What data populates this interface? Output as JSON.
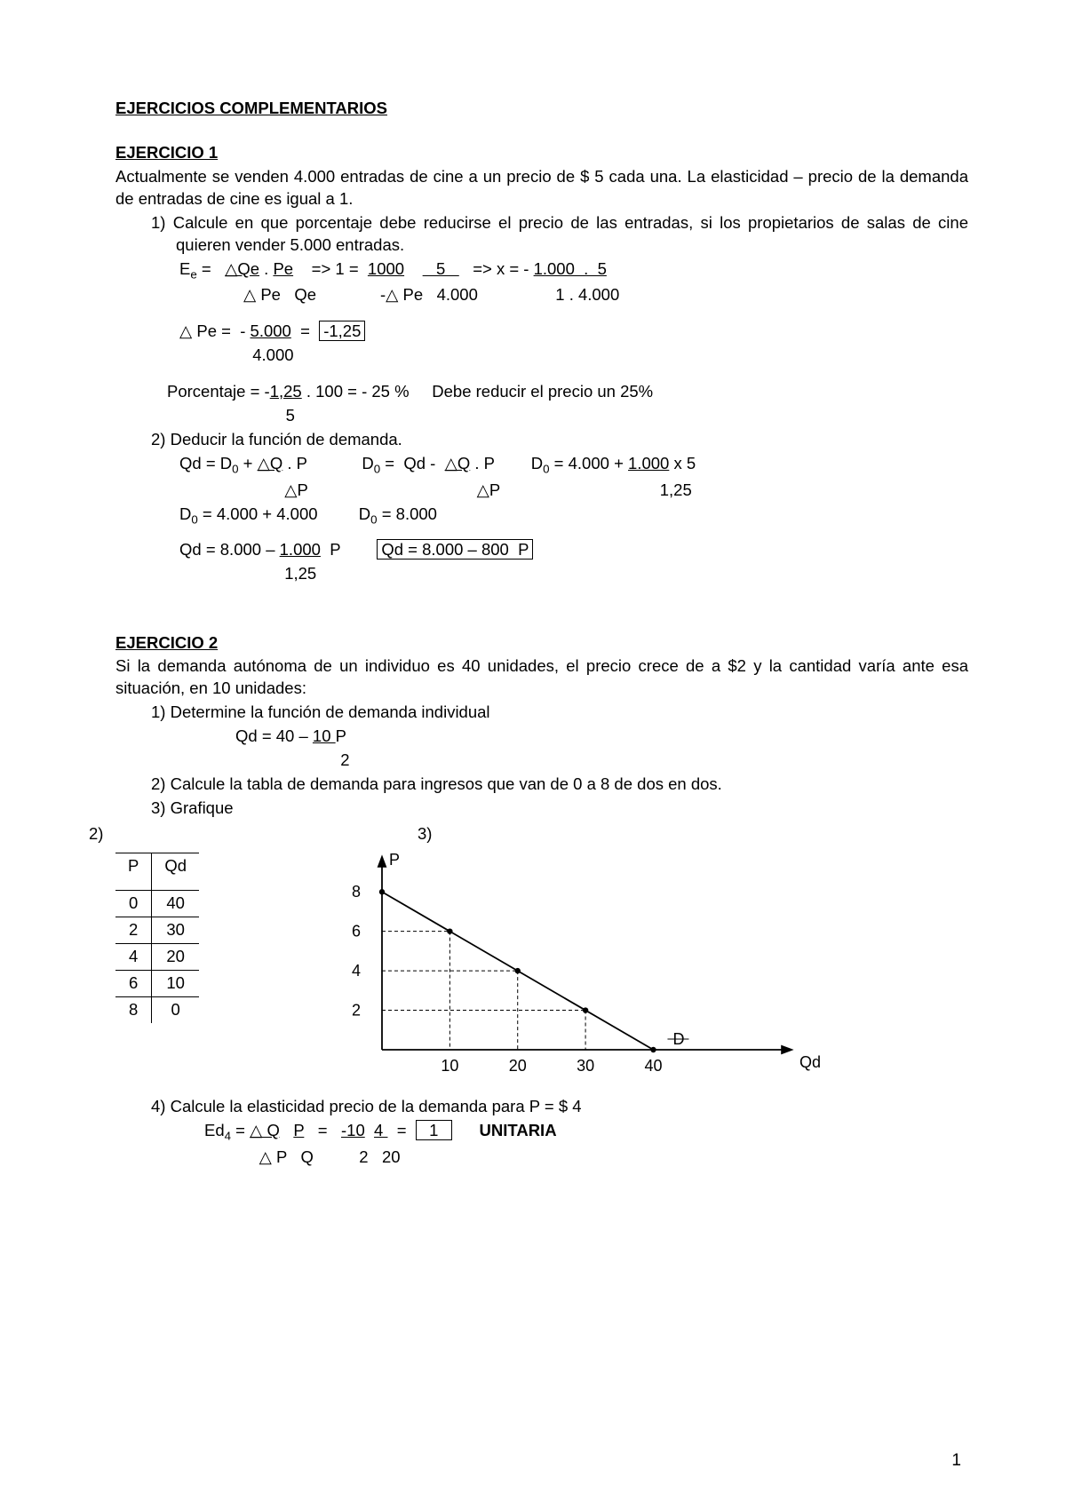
{
  "title": "EJERCICIOS COMPLEMENTARIOS",
  "ex1": {
    "header": "EJERCICIO 1",
    "intro": "Actualmente se venden 4.000 entradas de cine a un precio de $ 5 cada una. La elasticidad – precio de la demanda de entradas de cine es igual a 1.",
    "q1": "1)  Calcule en que porcentaje debe reducirse el precio de las entradas, si los propietarios de salas de cine quieren vender 5.000 entradas.",
    "eq1a_pre": "E",
    "eq1a_sub": "e",
    "eq1a": " =   ",
    "eq1a_u1": "△Qe",
    "eq1a_mid1": " . ",
    "eq1a_u2": "Pe",
    "eq1a_mid2": "    => 1 =  ",
    "eq1a_u3": "1000",
    "eq1a_mid3": "    ",
    "eq1a_u4": "   5   ",
    "eq1a_mid4": "   => x = - ",
    "eq1a_u5": "1.000  .  5",
    "eq1b": "              △ Pe   Qe              -△ Pe   4.000                 1 . 4.000",
    "eq1c_pre": "△ Pe =  - ",
    "eq1c_u1": "5.000",
    "eq1c_mid": "  =  ",
    "eq1c_box": "-1,25",
    "eq1d": "                4.000",
    "eq1e_pre": "Porcentaje = -",
    "eq1e_u": "1,25",
    "eq1e_post": " . 100 = - 25 %     Debe reducir el precio un 25%",
    "eq1f": "                          5",
    "q2": "2)  Deducir la función de demanda.",
    "eq2a_1": "Qd = D",
    "eq2a_2": " + ",
    "eq2a_u1": "△Q",
    "eq2a_3": " . P            D",
    "eq2a_4": " =  Qd -  ",
    "eq2a_u2": "△Q",
    "eq2a_5": " . P        D",
    "eq2a_6": " = 4.000 + ",
    "eq2a_u3": "1.000",
    "eq2a_7": " x 5",
    "eq2b": "                       △P                                     △P                                   1,25",
    "eq2c_1": "D",
    "eq2c_2": " = 4.000 + 4.000         D",
    "eq2c_3": " = 8.000",
    "eq2d_pre": "Qd = 8.000 – ",
    "eq2d_u": "1.000",
    "eq2d_mid": "  P        ",
    "eq2d_box": "Qd = 8.000 – 800  P",
    "eq2e": "                       1,25"
  },
  "ex2": {
    "header": "EJERCICIO 2",
    "intro": "Si la demanda autónoma de un individuo es 40 unidades, el precio crece de a $2 y la cantidad varía ante esa situación, en 10 unidades:",
    "q1": "1)  Determine la función de demanda individual",
    "eq1_pre": "Qd = 40 – ",
    "eq1_u": "10 ",
    "eq1_post": "P",
    "eq1b": "                       2",
    "q2": "2)  Calcule la tabla de demanda para ingresos que van de 0 a 8 de dos en dos.",
    "q3": "3)  Grafique",
    "label2": "2)",
    "label3": "3)",
    "table": {
      "columns": [
        "P",
        "Qd"
      ],
      "rows": [
        [
          "0",
          "40"
        ],
        [
          "2",
          "30"
        ],
        [
          "4",
          "20"
        ],
        [
          "6",
          "10"
        ],
        [
          "8",
          "0"
        ]
      ]
    },
    "chart": {
      "type": "line",
      "x_axis_label": "Qd",
      "y_axis_label": "P",
      "line_label": "D",
      "x_ticks": [
        10,
        20,
        30,
        40
      ],
      "y_ticks": [
        2,
        4,
        6,
        8
      ],
      "xlim": [
        0,
        55
      ],
      "ylim": [
        0,
        9
      ],
      "points": [
        [
          0,
          8
        ],
        [
          10,
          6
        ],
        [
          20,
          4
        ],
        [
          30,
          2
        ],
        [
          40,
          0
        ]
      ],
      "marker_points": [
        [
          0,
          8
        ],
        [
          10,
          6
        ],
        [
          20,
          4
        ],
        [
          30,
          2
        ],
        [
          40,
          0
        ]
      ],
      "dashed_drops": [
        [
          10,
          6
        ],
        [
          20,
          4
        ],
        [
          30,
          2
        ]
      ],
      "line_color": "#000000",
      "dash_color": "#000000",
      "background": "#ffffff",
      "marker_radius": 3.2,
      "line_width": 1.8
    },
    "q4": "4)  Calcule la elasticidad precio de la demanda para P = $ 4",
    "eq4_pre": "Ed",
    "eq4_sub": "4",
    "eq4_a": " = ",
    "eq4_u1": "△ Q",
    "eq4_b": "   ",
    "eq4_u2": "P",
    "eq4_c": "   =   ",
    "eq4_u3": "-10",
    "eq4_d": "  ",
    "eq4_u4": "4 ",
    "eq4_e": "  =  ",
    "eq4_box": "  1  ",
    "eq4_f": "      ",
    "eq4_bold": "UNITARIA",
    "eq4_line2": "            △ P   Q          2   20"
  },
  "page_number": "1"
}
